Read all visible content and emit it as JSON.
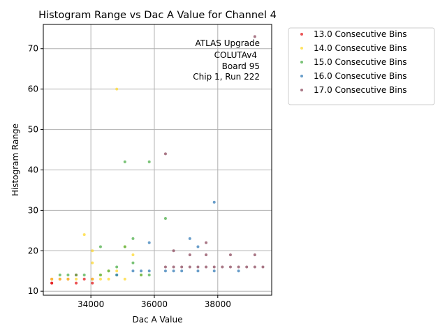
{
  "chart_data": {
    "type": "scatter",
    "title": "Histogram Range vs Dac A Value for Channel 4",
    "xlabel": "Dac A Value",
    "ylabel": "Histogram Range",
    "xlim": [
      32500,
      39700
    ],
    "ylim": [
      9,
      76
    ],
    "xticks": [
      34000,
      36000,
      38000
    ],
    "yticks": [
      10,
      20,
      30,
      40,
      50,
      60,
      70
    ],
    "xtick_labels": [
      "34000",
      "36000",
      "38000"
    ],
    "ytick_labels": [
      "10",
      "20",
      "30",
      "40",
      "50",
      "60",
      "70"
    ],
    "grid": true,
    "legend_position": "outside-right-top",
    "annotation": [
      "ATLAS Upgrade",
      "COLUTAv4",
      "Board 95",
      "Chip 1, Run 222"
    ],
    "series": [
      {
        "name": "13.0 Consecutive Bins",
        "color": "#e41a1c",
        "points": [
          [
            32768,
            12
          ],
          [
            32768,
            12
          ],
          [
            32768,
            13
          ],
          [
            33024,
            13
          ],
          [
            33280,
            13
          ],
          [
            33536,
            12
          ],
          [
            33536,
            14
          ],
          [
            33792,
            13
          ],
          [
            34048,
            12
          ],
          [
            34048,
            13
          ]
        ]
      },
      {
        "name": "14.0 Consecutive Bins",
        "color": "#ffd92f",
        "points": [
          [
            32768,
            13
          ],
          [
            33024,
            13
          ],
          [
            33280,
            13
          ],
          [
            33536,
            13
          ],
          [
            33792,
            24
          ],
          [
            34048,
            20
          ],
          [
            34048,
            17
          ],
          [
            34048,
            13
          ],
          [
            34304,
            14
          ],
          [
            34304,
            13
          ],
          [
            34560,
            15
          ],
          [
            34560,
            13
          ],
          [
            34816,
            60
          ],
          [
            34816,
            15
          ],
          [
            35072,
            21
          ],
          [
            35072,
            13
          ],
          [
            35328,
            19
          ],
          [
            35584,
            14
          ]
        ]
      },
      {
        "name": "15.0 Consecutive Bins",
        "color": "#4daf4a",
        "points": [
          [
            33024,
            14
          ],
          [
            33280,
            14
          ],
          [
            33536,
            14
          ],
          [
            33792,
            14
          ],
          [
            34304,
            21
          ],
          [
            34304,
            14
          ],
          [
            34560,
            15
          ],
          [
            34816,
            16
          ],
          [
            34816,
            14
          ],
          [
            35072,
            42
          ],
          [
            35072,
            21
          ],
          [
            35328,
            23
          ],
          [
            35328,
            17
          ],
          [
            35584,
            14
          ],
          [
            35840,
            42
          ],
          [
            35840,
            14
          ],
          [
            36352,
            28
          ]
        ]
      },
      {
        "name": "16.0 Consecutive Bins",
        "color": "#377eb8",
        "points": [
          [
            34816,
            14
          ],
          [
            35328,
            15
          ],
          [
            35584,
            15
          ],
          [
            35840,
            22
          ],
          [
            35840,
            15
          ],
          [
            36352,
            15
          ],
          [
            36608,
            15
          ],
          [
            36864,
            15
          ],
          [
            37120,
            23
          ],
          [
            37376,
            21
          ],
          [
            37376,
            15
          ],
          [
            37888,
            32
          ],
          [
            37888,
            15
          ],
          [
            38656,
            15
          ]
        ]
      },
      {
        "name": "17.0 Consecutive Bins",
        "color": "#8c4a5e",
        "points": [
          [
            36352,
            44
          ],
          [
            36352,
            16
          ],
          [
            36608,
            20
          ],
          [
            36608,
            16
          ],
          [
            36864,
            16
          ],
          [
            37120,
            19
          ],
          [
            37120,
            16
          ],
          [
            37376,
            16
          ],
          [
            37632,
            22
          ],
          [
            37632,
            19
          ],
          [
            37632,
            16
          ],
          [
            37888,
            16
          ],
          [
            38144,
            16
          ],
          [
            38400,
            19
          ],
          [
            38400,
            16
          ],
          [
            38656,
            16
          ],
          [
            38912,
            16
          ],
          [
            39168,
            73
          ],
          [
            39168,
            19
          ],
          [
            39168,
            16
          ],
          [
            39424,
            16
          ]
        ]
      }
    ]
  }
}
